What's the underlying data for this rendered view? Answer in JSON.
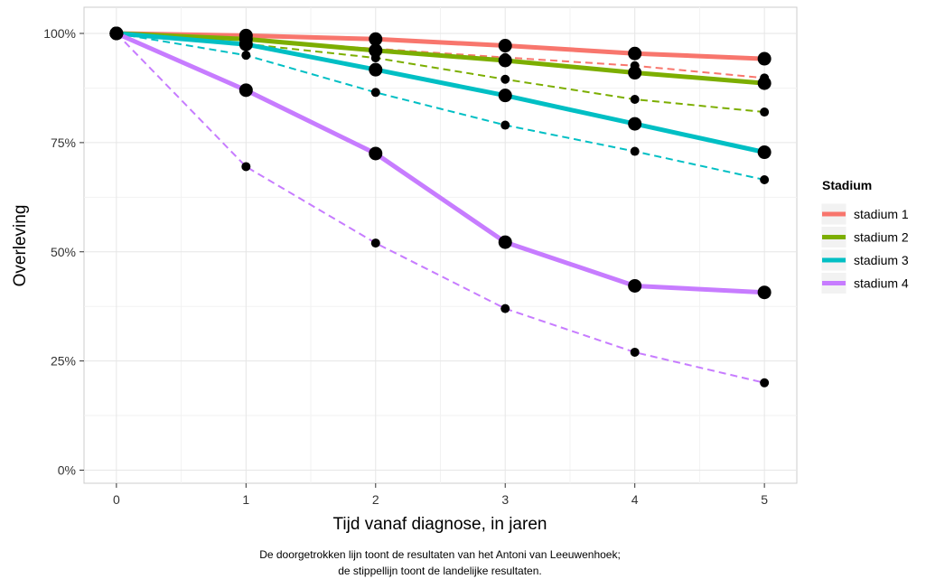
{
  "chart_data": {
    "type": "line",
    "title": "",
    "xlabel": "Tijd vanaf diagnose, in jaren",
    "ylabel": "Overleving",
    "x": [
      0,
      1,
      2,
      3,
      4,
      5
    ],
    "x_ticks": [
      "0",
      "1",
      "2",
      "3",
      "4",
      "5"
    ],
    "xlim": [
      -0.25,
      5.25
    ],
    "ylim": [
      -3,
      106
    ],
    "y_ticks": [
      {
        "value": 0,
        "label": "0%"
      },
      {
        "value": 25,
        "label": "25%"
      },
      {
        "value": 50,
        "label": "50%"
      },
      {
        "value": 75,
        "label": "75%"
      },
      {
        "value": 100,
        "label": "100%"
      }
    ],
    "grid": true,
    "legend": {
      "title": "Stadium",
      "position": "right"
    },
    "series": [
      {
        "name": "stadium 1",
        "color": "#F8766D",
        "avl": [
          100,
          99.5,
          98.7,
          97.2,
          95.4,
          94.2
        ],
        "national": [
          100,
          98.5,
          96.5,
          94.5,
          92.6,
          89.8
        ]
      },
      {
        "name": "stadium 2",
        "color": "#7CAE00",
        "avl": [
          100,
          98.7,
          96.1,
          93.8,
          91.0,
          88.6
        ],
        "national": [
          100,
          97.6,
          94.4,
          89.5,
          84.9,
          82.0
        ]
      },
      {
        "name": "stadium 3",
        "color": "#00BFC4",
        "avl": [
          100,
          97.5,
          91.7,
          85.8,
          79.3,
          72.8
        ],
        "national": [
          100,
          95.0,
          86.5,
          79.0,
          73.0,
          66.5
        ]
      },
      {
        "name": "stadium 4",
        "color": "#C77CFF",
        "avl": [
          100,
          87.0,
          72.5,
          52.2,
          42.2,
          40.7
        ],
        "national": [
          100,
          69.5,
          52.0,
          37.0,
          27.0,
          20.0
        ]
      }
    ]
  },
  "caption": {
    "line1": "De doorgetrokken lijn toont de resultaten van het Antoni van Leeuwenhoek;",
    "line2": "de stippellijn toont de landelijke resultaten."
  }
}
